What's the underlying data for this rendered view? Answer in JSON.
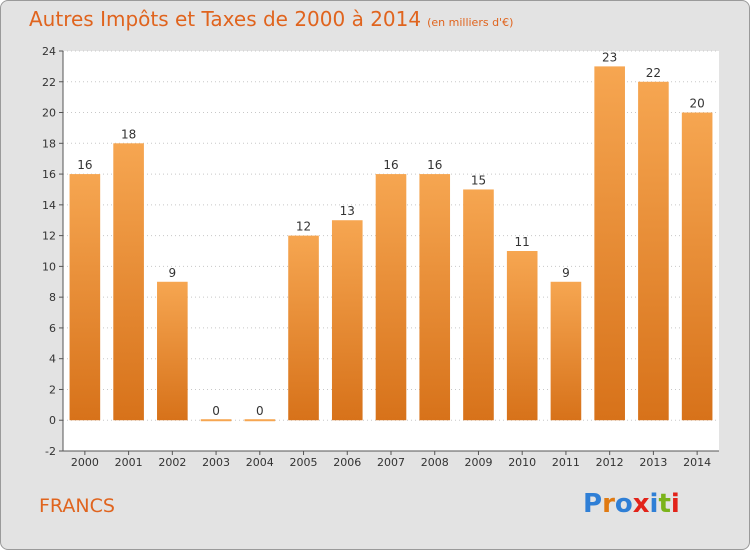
{
  "title": "Autres Impôts et Taxes de 2000 à 2014",
  "subtitle": "(en milliers d'€)",
  "footer_label": "FRANCS",
  "logo": {
    "letters": [
      "P",
      "r",
      "o",
      "x",
      "i",
      "t",
      "i"
    ],
    "colors": [
      "#2f7fd6",
      "#e07a12",
      "#2f7fd6",
      "#e2231a",
      "#2f7fd6",
      "#7bb31a",
      "#e2231a"
    ]
  },
  "colors": {
    "accent": "#e0641e",
    "bar_top": "#f6a651",
    "bar_bottom": "#d7721a",
    "background": "#e3e3e3",
    "plot_background": "#ffffff"
  },
  "chart_data": {
    "type": "bar",
    "title": "Autres Impôts et Taxes de 2000 à 2014",
    "subtitle": "(en milliers d'€)",
    "categories": [
      "2000",
      "2001",
      "2002",
      "2003",
      "2004",
      "2005",
      "2006",
      "2007",
      "2008",
      "2009",
      "2010",
      "2011",
      "2012",
      "2013",
      "2014"
    ],
    "values": [
      16,
      18,
      9,
      0,
      0,
      12,
      13,
      16,
      16,
      15,
      11,
      9,
      23,
      22,
      20
    ],
    "data_labels": [
      "16",
      "18",
      "9",
      "0",
      "0",
      "12",
      "13",
      "16",
      "16",
      "15",
      "11",
      "9",
      "23",
      "22",
      "20"
    ],
    "ylim": [
      -2,
      24
    ],
    "yticks": [
      -2,
      0,
      2,
      4,
      6,
      8,
      10,
      12,
      14,
      16,
      18,
      20,
      22,
      24
    ],
    "grid": true,
    "xlabel": "",
    "ylabel": ""
  }
}
